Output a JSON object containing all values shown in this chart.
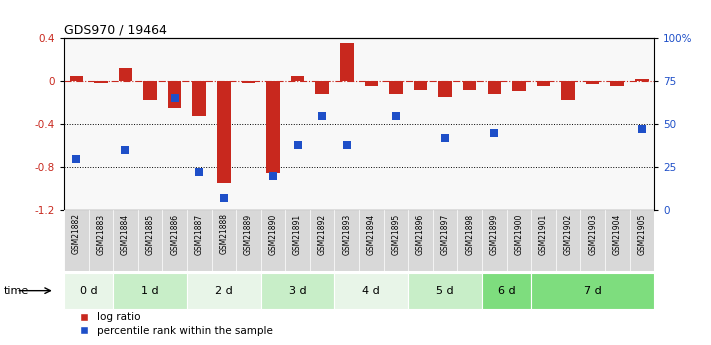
{
  "title": "GDS970 / 19464",
  "samples": [
    "GSM21882",
    "GSM21883",
    "GSM21884",
    "GSM21885",
    "GSM21886",
    "GSM21887",
    "GSM21888",
    "GSM21889",
    "GSM21890",
    "GSM21891",
    "GSM21892",
    "GSM21893",
    "GSM21894",
    "GSM21895",
    "GSM21896",
    "GSM21897",
    "GSM21898",
    "GSM21899",
    "GSM21900",
    "GSM21901",
    "GSM21902",
    "GSM21903",
    "GSM21904",
    "GSM21905"
  ],
  "log_ratio": [
    0.05,
    -0.02,
    0.12,
    -0.18,
    -0.25,
    -0.32,
    -0.95,
    -0.02,
    -0.85,
    0.05,
    -0.12,
    0.35,
    -0.05,
    -0.12,
    -0.08,
    -0.15,
    -0.08,
    -0.12,
    -0.09,
    -0.05,
    -0.18,
    -0.03,
    -0.05,
    0.02
  ],
  "percentile_rank": [
    30,
    null,
    35,
    null,
    65,
    22,
    7,
    null,
    20,
    38,
    55,
    38,
    null,
    55,
    null,
    42,
    null,
    45,
    null,
    null,
    null,
    null,
    null,
    47
  ],
  "groups": [
    {
      "name": "0 d",
      "indices": [
        0,
        1
      ],
      "color": "#e8f5e8"
    },
    {
      "name": "1 d",
      "indices": [
        2,
        3,
        4
      ],
      "color": "#c8eec8"
    },
    {
      "name": "2 d",
      "indices": [
        5,
        6,
        7
      ],
      "color": "#e8f5e8"
    },
    {
      "name": "3 d",
      "indices": [
        8,
        9,
        10
      ],
      "color": "#c8eec8"
    },
    {
      "name": "4 d",
      "indices": [
        11,
        12,
        13
      ],
      "color": "#e8f5e8"
    },
    {
      "name": "5 d",
      "indices": [
        14,
        15,
        16
      ],
      "color": "#c8eec8"
    },
    {
      "name": "6 d",
      "indices": [
        17,
        18
      ],
      "color": "#7edd7e"
    },
    {
      "name": "7 d",
      "indices": [
        19,
        20,
        21,
        22,
        23
      ],
      "color": "#7edd7e"
    }
  ],
  "ylim_left": [
    -1.2,
    0.4
  ],
  "ylim_right": [
    0,
    100
  ],
  "bar_color": "#c8281e",
  "scatter_color": "#1e4fc8",
  "hline_color": "#c8281e",
  "bg_color": "#ffffff",
  "plot_bg_color": "#f8f8f8",
  "yticks_left": [
    -1.2,
    -0.8,
    -0.4,
    0.0,
    0.4
  ],
  "ytick_labels_left": [
    "-1.2",
    "-0.8",
    "-0.4",
    "0",
    "0.4"
  ],
  "yticks_right": [
    0,
    25,
    50,
    75,
    100
  ],
  "ytick_labels_right": [
    "0",
    "25",
    "50",
    "75",
    "100%"
  ],
  "figsize": [
    7.11,
    3.45
  ],
  "dpi": 100
}
